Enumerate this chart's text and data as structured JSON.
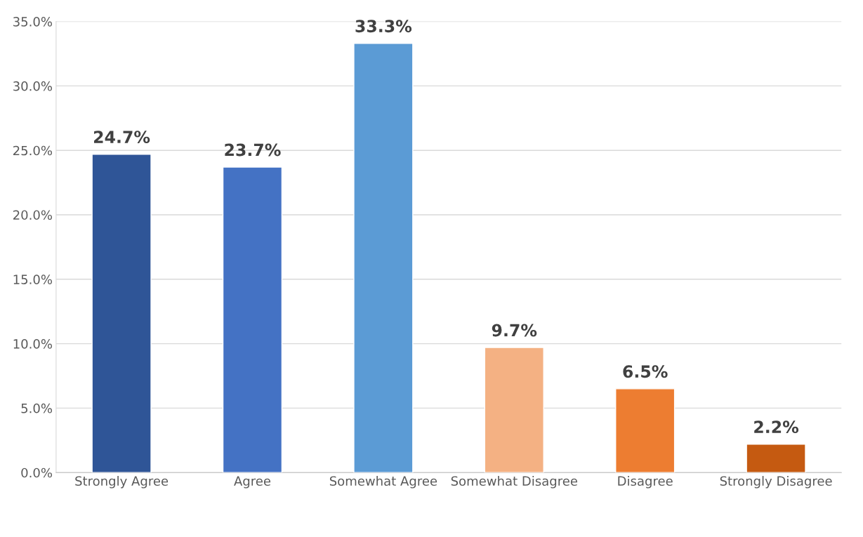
{
  "chart_data": {
    "type": "bar",
    "categories": [
      "Strongly Agree",
      "Agree",
      "Somewhat Agree",
      "Somewhat Disagree",
      "Disagree",
      "Strongly Disagree"
    ],
    "values": [
      24.7,
      23.7,
      33.3,
      9.7,
      6.5,
      2.2
    ],
    "value_labels": [
      "24.7%",
      "23.7%",
      "33.3%",
      "9.7%",
      "6.5%",
      "2.2%"
    ],
    "colors": [
      "#2f5597",
      "#4472c4",
      "#5b9bd5",
      "#f4b183",
      "#ed7d31",
      "#c55a11"
    ],
    "ylim": [
      0,
      35
    ],
    "yticks": [
      {
        "value": 0,
        "label": "0.0%"
      },
      {
        "value": 5,
        "label": "5.0%"
      },
      {
        "value": 10,
        "label": "10.0%"
      },
      {
        "value": 15,
        "label": "15.0%"
      },
      {
        "value": 20,
        "label": "20.0%"
      },
      {
        "value": 25,
        "label": "25.0%"
      },
      {
        "value": 30,
        "label": "30.0%"
      },
      {
        "value": 35,
        "label": "35.0%"
      }
    ],
    "grid": "y"
  }
}
